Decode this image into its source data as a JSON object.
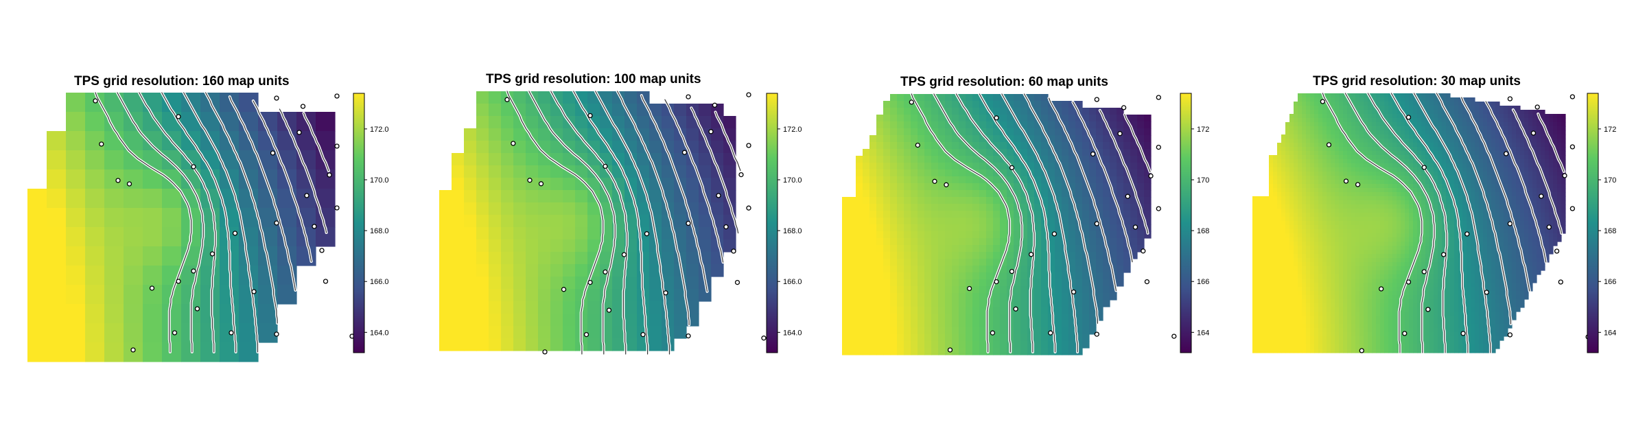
{
  "panels": [
    {
      "title": "TPS grid resolution: 160 map units",
      "resolution": 160,
      "legend_ticks": [
        "172.0",
        "170.0",
        "168.0",
        "166.0",
        "164.0"
      ]
    },
    {
      "title": "TPS grid resolution: 100 map units",
      "resolution": 100,
      "legend_ticks": [
        "172.0",
        "170.0",
        "168.0",
        "166.0",
        "164.0"
      ]
    },
    {
      "title": "TPS grid resolution: 60 map units",
      "resolution": 60,
      "legend_ticks": [
        "172",
        "170",
        "168",
        "166",
        "164"
      ]
    },
    {
      "title": "TPS grid resolution: 30 map units",
      "resolution": 30,
      "legend_ticks": [
        "172",
        "170",
        "168",
        "166",
        "164"
      ]
    }
  ],
  "legend": {
    "min": 163.2,
    "max": 173.4,
    "tick_values": [
      172,
      170,
      168,
      166,
      164
    ]
  },
  "palette": [
    "#440154",
    "#3b528b",
    "#21918c",
    "#5ec962",
    "#fde725"
  ],
  "contour_colors": {
    "outer": "#ffffff",
    "inner": "#333333"
  }
}
